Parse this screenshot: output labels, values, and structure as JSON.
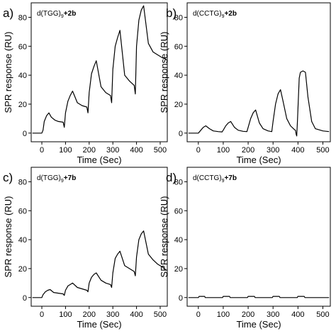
{
  "chart_data": [
    {
      "type": "line",
      "panel_label": "a)",
      "sequence": "d(TGG)",
      "subscript": "9",
      "compound": "+2b",
      "xlabel": "Time (Sec)",
      "ylabel": "SPR response (RU)",
      "xlim": [
        -45,
        530
      ],
      "ylim": [
        -6,
        90
      ],
      "xticks": [
        0,
        100,
        200,
        300,
        400,
        500
      ],
      "yticks": [
        0,
        20,
        40,
        60,
        80
      ],
      "grid": false,
      "x": [
        -40,
        0,
        5,
        10,
        20,
        30,
        40,
        55,
        70,
        90,
        95,
        100,
        110,
        120,
        130,
        150,
        170,
        190,
        195,
        200,
        210,
        220,
        230,
        250,
        270,
        290,
        295,
        300,
        310,
        320,
        330,
        350,
        370,
        390,
        395,
        400,
        410,
        420,
        430,
        450,
        470,
        490,
        510,
        525
      ],
      "y": [
        0,
        0,
        2,
        8,
        12,
        14,
        11,
        9,
        8,
        7.5,
        4,
        14,
        22,
        26,
        29,
        21,
        19,
        18,
        14,
        28,
        41,
        46,
        50,
        32,
        28,
        26,
        21,
        44,
        60,
        66,
        71,
        40,
        36,
        33,
        27,
        60,
        78,
        85,
        88,
        62,
        56,
        54,
        52,
        51
      ]
    },
    {
      "type": "line",
      "panel_label": "b)",
      "sequence": "d(CCTG)",
      "subscript": "9",
      "compound": "+2b",
      "xlabel": "Time (Sec)",
      "ylabel": "SPR response (RU)",
      "xlim": [
        -45,
        530
      ],
      "ylim": [
        -6,
        90
      ],
      "xticks": [
        0,
        100,
        200,
        300,
        400,
        500
      ],
      "yticks": [
        0,
        20,
        40,
        60,
        80
      ],
      "grid": false,
      "x": [
        -40,
        0,
        10,
        20,
        30,
        45,
        60,
        80,
        95,
        100,
        110,
        120,
        130,
        145,
        160,
        180,
        195,
        200,
        210,
        220,
        230,
        245,
        260,
        280,
        295,
        300,
        310,
        320,
        330,
        340,
        355,
        370,
        385,
        390,
        393,
        395,
        398,
        405,
        410,
        420,
        430,
        440,
        455,
        470,
        500,
        525
      ],
      "y": [
        0,
        0,
        2,
        4,
        5,
        3,
        1.5,
        1,
        0.8,
        2,
        5,
        7,
        8,
        4,
        2,
        1.2,
        1,
        4,
        10,
        14,
        16,
        7,
        3,
        1.5,
        1,
        8,
        20,
        27,
        30,
        22,
        10,
        5,
        2.5,
        2,
        -1,
        -2,
        8,
        38,
        42,
        43,
        42,
        25,
        8,
        3,
        1.5,
        1
      ]
    },
    {
      "type": "line",
      "panel_label": "c)",
      "sequence": "d(TGG)",
      "subscript": "9",
      "compound": "+7b",
      "xlabel": "Time (Sec)",
      "ylabel": "SPR response (RU)",
      "xlim": [
        -45,
        530
      ],
      "ylim": [
        -6,
        90
      ],
      "xticks": [
        0,
        100,
        200,
        300,
        400,
        500
      ],
      "yticks": [
        0,
        20,
        40,
        60,
        80
      ],
      "grid": false,
      "x": [
        -40,
        0,
        5,
        15,
        25,
        35,
        50,
        70,
        90,
        95,
        100,
        110,
        120,
        130,
        150,
        170,
        190,
        195,
        200,
        210,
        220,
        230,
        250,
        270,
        290,
        295,
        300,
        310,
        320,
        330,
        350,
        370,
        390,
        395,
        400,
        410,
        420,
        430,
        450,
        470,
        490,
        510,
        525
      ],
      "y": [
        0,
        0,
        2,
        4,
        5,
        5.5,
        3.5,
        3,
        2.5,
        1.5,
        5,
        8,
        9,
        10,
        7,
        6,
        5,
        4,
        10,
        14,
        16,
        17,
        12,
        10,
        9,
        7,
        17,
        27,
        30,
        32,
        22,
        20,
        18,
        15,
        28,
        40,
        44,
        46,
        30,
        26,
        23,
        21,
        19
      ]
    },
    {
      "type": "line",
      "panel_label": "d)",
      "sequence": "d(CCTG)",
      "subscript": "9",
      "compound": "+7b",
      "xlabel": "Time (Sec)",
      "ylabel": "SPR response (RU)",
      "xlim": [
        -45,
        530
      ],
      "ylim": [
        -6,
        90
      ],
      "xticks": [
        0,
        100,
        200,
        300,
        400,
        500
      ],
      "yticks": [
        0,
        20,
        40,
        60,
        80
      ],
      "grid": false,
      "x": [
        -40,
        0,
        3,
        25,
        28,
        97,
        100,
        125,
        128,
        197,
        200,
        225,
        228,
        297,
        300,
        325,
        328,
        397,
        400,
        425,
        428,
        525
      ],
      "y": [
        0,
        0,
        0.8,
        0.8,
        0,
        0,
        0.8,
        0.8,
        0,
        0,
        0.8,
        0.8,
        0,
        0,
        0.8,
        0.8,
        0,
        0,
        0.8,
        0.8,
        0,
        0
      ]
    }
  ]
}
